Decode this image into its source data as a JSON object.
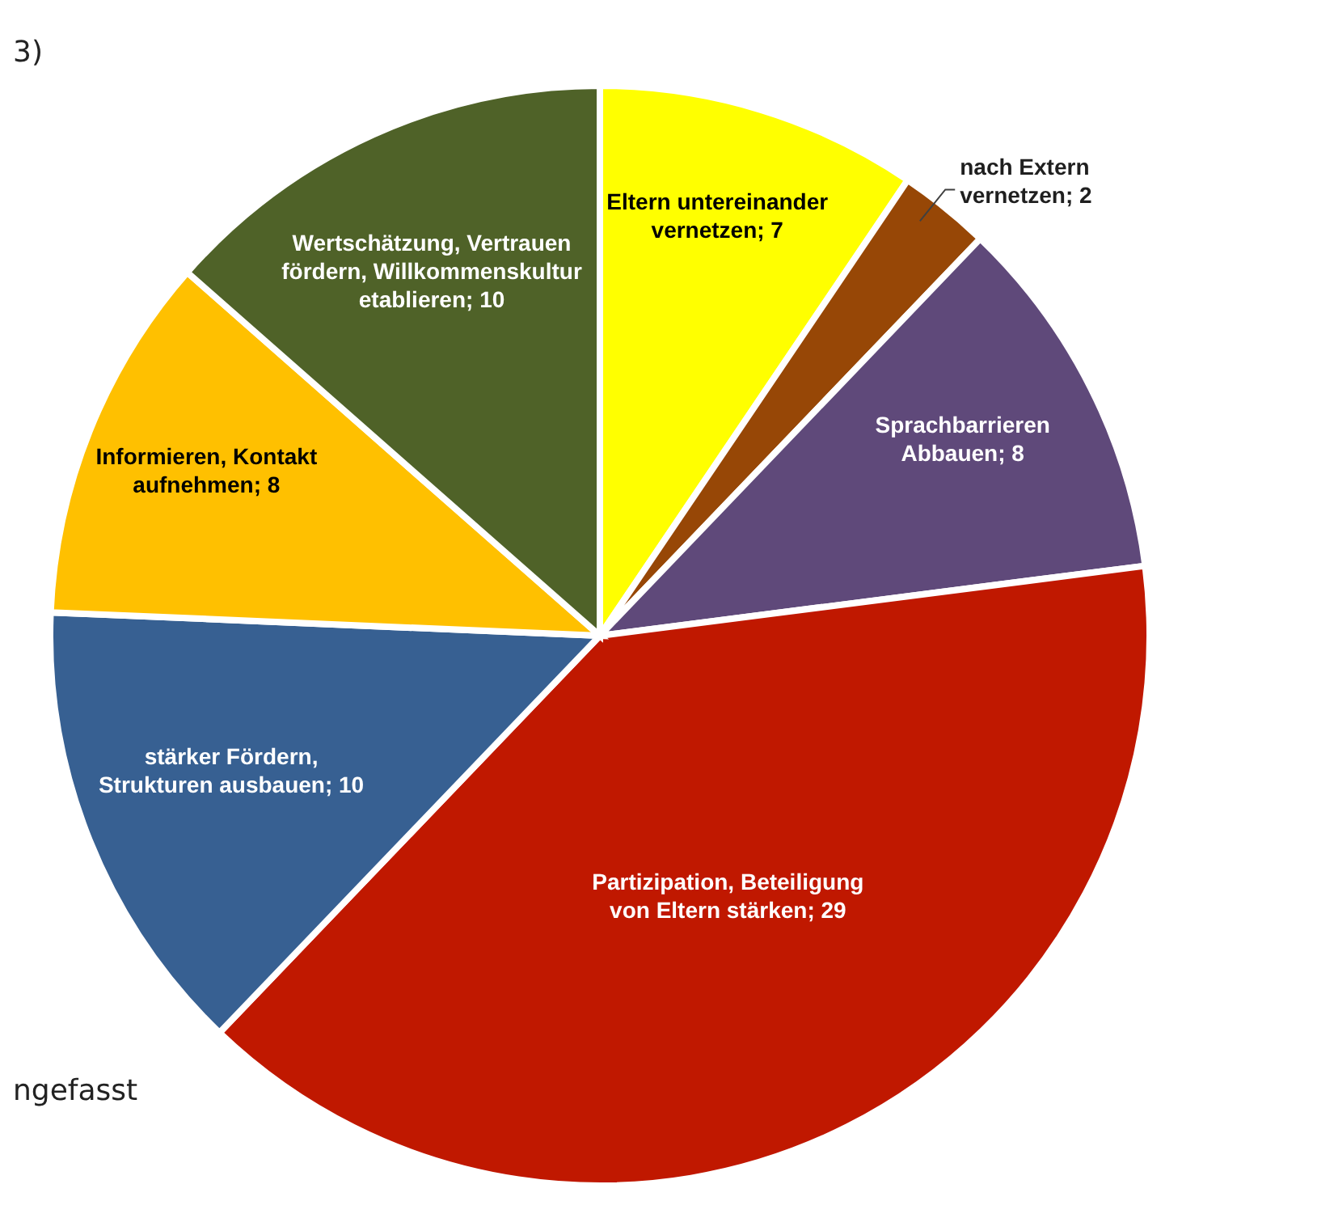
{
  "chart_data": {
    "type": "pie",
    "categories": [
      "Eltern untereinander vernetzen",
      "nach Extern vernetzen",
      "Sprachbarrieren Abbauen",
      "Partizipation, Beteiligung von Eltern stärken",
      "stärker Fördern, Strukturen ausbauen",
      "Informieren, Kontakt aufnehmen",
      "Wertschätzung, Vertrauen fördern, Willkommenskultur etablieren"
    ],
    "values": [
      7,
      2,
      8,
      29,
      10,
      8,
      10
    ],
    "colors": [
      "#ffff00",
      "#974706",
      "#5f497a",
      "#c01800",
      "#376092",
      "#ffc000",
      "#4f6228"
    ],
    "value_labels": [
      "; 7",
      "; 2",
      "; 8",
      "; 29",
      "; 10",
      "; 8",
      "; 10"
    ],
    "annotations": [
      "3)",
      "ngefasst"
    ]
  }
}
